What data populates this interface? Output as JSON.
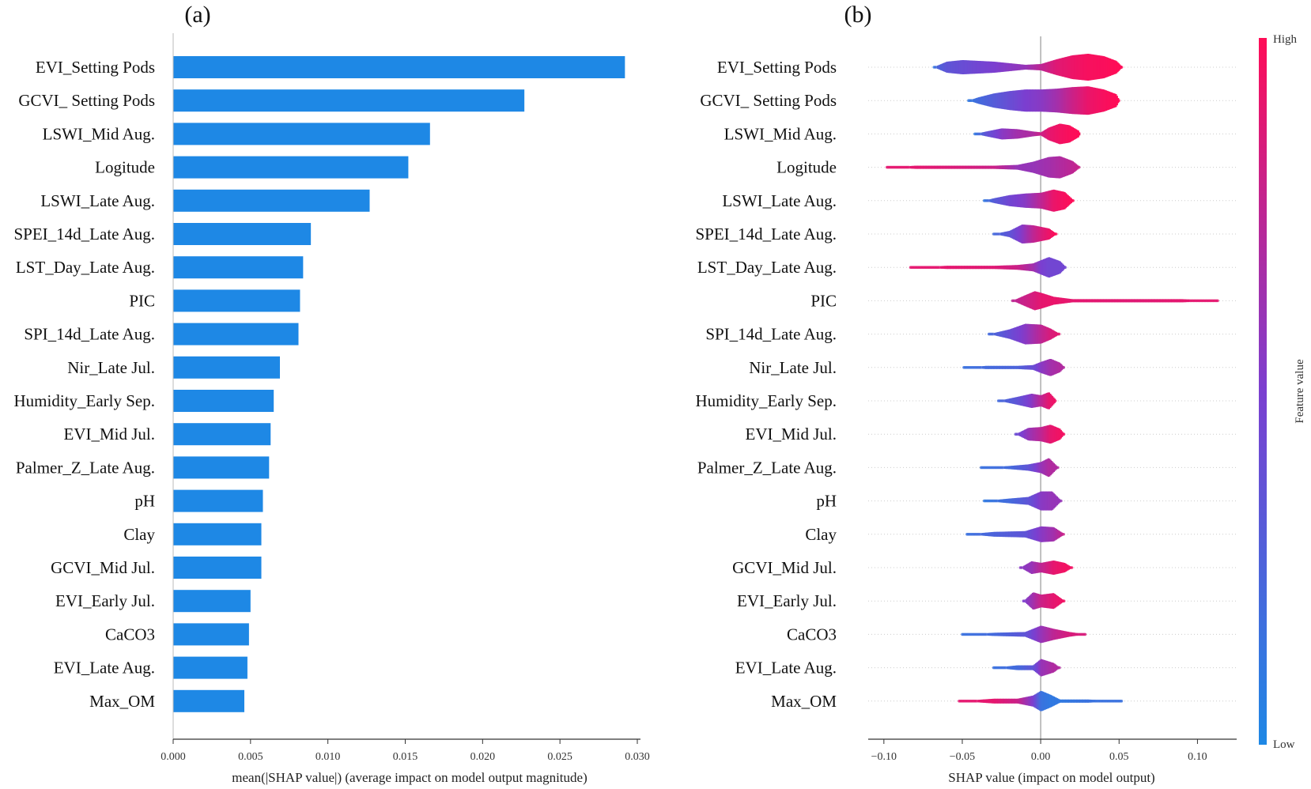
{
  "chart_data": [
    {
      "panel_label": "(a)",
      "type": "bar",
      "orientation": "horizontal",
      "categories": [
        "EVI_Setting Pods",
        "GCVI_ Setting Pods",
        "LSWI_Mid Aug.",
        "Logitude",
        "LSWI_Late Aug.",
        "SPEI_14d_Late Aug.",
        "LST_Day_Late Aug.",
        "PIC",
        "SPI_14d_Late Aug.",
        "Nir_Late Jul.",
        "Humidity_Early Sep.",
        "EVI_Mid Jul.",
        "Palmer_Z_Late Aug.",
        "pH",
        "Clay",
        "GCVI_Mid Jul.",
        "EVI_Early Jul.",
        "CaCO3",
        "EVI_Late Aug.",
        "Max_OM"
      ],
      "values": [
        0.0292,
        0.0227,
        0.0166,
        0.0152,
        0.0127,
        0.0089,
        0.0084,
        0.0082,
        0.0081,
        0.0069,
        0.0065,
        0.0063,
        0.0062,
        0.0058,
        0.0057,
        0.0057,
        0.005,
        0.0049,
        0.0048,
        0.0046
      ],
      "xlabel": "mean(|SHAP value|) (average impact on model output magnitude)",
      "ylabel": "",
      "xlim": [
        0.0,
        0.03
      ],
      "xticks": [
        "0.000",
        "0.005",
        "0.010",
        "0.015",
        "0.020",
        "0.025",
        "0.030"
      ],
      "bar_color": "#1E88E5"
    },
    {
      "panel_label": "(b)",
      "type": "scatter",
      "subtype": "shap-violin",
      "categories": [
        "EVI_Setting Pods",
        "GCVI_ Setting Pods",
        "LSWI_Mid Aug.",
        "Logitude",
        "LSWI_Late Aug.",
        "SPEI_14d_Late Aug.",
        "LST_Day_Late Aug.",
        "PIC",
        "SPI_14d_Late Aug.",
        "Nir_Late Jul.",
        "Humidity_Early Sep.",
        "EVI_Mid Jul.",
        "Palmer_Z_Late Aug.",
        "pH",
        "Clay",
        "GCVI_Mid Jul.",
        "EVI_Early Jul.",
        "CaCO3",
        "EVI_Late Aug.",
        "Max_OM"
      ],
      "xlabel": "SHAP value (impact on model output)",
      "xlim": [
        -0.11,
        0.125
      ],
      "xticks": [
        "−0.10",
        "−0.05",
        "0.00",
        "0.05",
        "0.10"
      ],
      "xtick_values": [
        -0.1,
        -0.05,
        0.0,
        0.05,
        0.1
      ],
      "colorbar": {
        "title": "Feature value",
        "high_label": "High",
        "low_label": "Low",
        "high_color": "#FF0D57",
        "low_color": "#1E88E5"
      },
      "features": [
        {
          "min": -0.068,
          "max": 0.052,
          "shape": [
            [
              -0.068,
              0,
              0.1
            ],
            [
              -0.066,
              2,
              0.25
            ],
            [
              -0.06,
              7,
              0.35
            ],
            [
              -0.05,
              9,
              0.4
            ],
            [
              -0.04,
              8,
              0.45
            ],
            [
              -0.03,
              7,
              0.5
            ],
            [
              -0.02,
              5,
              0.55
            ],
            [
              -0.01,
              3,
              0.6
            ],
            [
              0.0,
              4,
              0.75
            ],
            [
              0.01,
              10,
              0.88
            ],
            [
              0.02,
              15,
              0.93
            ],
            [
              0.03,
              17,
              0.97
            ],
            [
              0.04,
              14,
              0.98
            ],
            [
              0.048,
              8,
              1.0
            ],
            [
              0.052,
              0,
              1.0
            ]
          ]
        },
        {
          "min": -0.046,
          "max": 0.05,
          "shape": [
            [
              -0.046,
              0,
              0.1
            ],
            [
              -0.04,
              4,
              0.2
            ],
            [
              -0.03,
              9,
              0.3
            ],
            [
              -0.02,
              12,
              0.4
            ],
            [
              -0.01,
              14,
              0.5
            ],
            [
              0.0,
              14,
              0.55
            ],
            [
              0.01,
              15,
              0.65
            ],
            [
              0.02,
              17,
              0.8
            ],
            [
              0.03,
              18,
              0.92
            ],
            [
              0.04,
              14,
              0.97
            ],
            [
              0.048,
              8,
              1.0
            ],
            [
              0.05,
              0,
              1.0
            ]
          ]
        },
        {
          "min": -0.042,
          "max": 0.025,
          "shape": [
            [
              -0.042,
              0,
              0.1
            ],
            [
              -0.035,
              3,
              0.35
            ],
            [
              -0.025,
              7,
              0.55
            ],
            [
              -0.015,
              6,
              0.65
            ],
            [
              -0.005,
              3,
              0.7
            ],
            [
              0.0,
              2,
              0.8
            ],
            [
              0.005,
              8,
              0.9
            ],
            [
              0.012,
              13,
              0.95
            ],
            [
              0.018,
              11,
              0.98
            ],
            [
              0.024,
              4,
              1.0
            ],
            [
              0.025,
              0,
              1.0
            ]
          ]
        },
        {
          "min": -0.098,
          "max": 0.025,
          "shape": [
            [
              -0.098,
              0,
              0.9
            ],
            [
              -0.08,
              2,
              0.9
            ],
            [
              -0.05,
              2,
              0.85
            ],
            [
              -0.03,
              2,
              0.8
            ],
            [
              -0.015,
              3,
              0.6
            ],
            [
              -0.005,
              7,
              0.6
            ],
            [
              0.005,
              13,
              0.65
            ],
            [
              0.012,
              14,
              0.7
            ],
            [
              0.02,
              8,
              0.75
            ],
            [
              0.025,
              0,
              0.8
            ]
          ]
        },
        {
          "min": -0.036,
          "max": 0.021,
          "shape": [
            [
              -0.036,
              0,
              0.1
            ],
            [
              -0.03,
              3,
              0.3
            ],
            [
              -0.02,
              7,
              0.45
            ],
            [
              -0.01,
              9,
              0.55
            ],
            [
              0.0,
              10,
              0.75
            ],
            [
              0.008,
              14,
              0.92
            ],
            [
              0.015,
              11,
              0.97
            ],
            [
              0.021,
              0,
              1.0
            ]
          ]
        },
        {
          "min": -0.03,
          "max": 0.01,
          "shape": [
            [
              -0.03,
              0,
              0.2
            ],
            [
              -0.02,
              4,
              0.35
            ],
            [
              -0.012,
              12,
              0.55
            ],
            [
              -0.005,
              11,
              0.75
            ],
            [
              0.0,
              9,
              0.85
            ],
            [
              0.005,
              7,
              0.93
            ],
            [
              0.01,
              0,
              1.0
            ]
          ]
        },
        {
          "min": -0.083,
          "max": 0.016,
          "shape": [
            [
              -0.083,
              0,
              0.9
            ],
            [
              -0.06,
              2,
              0.9
            ],
            [
              -0.03,
              2,
              0.88
            ],
            [
              -0.015,
              3,
              0.8
            ],
            [
              -0.005,
              5,
              0.65
            ],
            [
              0.0,
              9,
              0.5
            ],
            [
              0.005,
              13,
              0.45
            ],
            [
              0.012,
              8,
              0.45
            ],
            [
              0.016,
              0,
              0.45
            ]
          ]
        },
        {
          "min": -0.018,
          "max": 0.113,
          "shape": [
            [
              -0.018,
              0,
              0.75
            ],
            [
              -0.01,
              7,
              0.8
            ],
            [
              -0.004,
              12,
              0.85
            ],
            [
              0.0,
              10,
              0.9
            ],
            [
              0.008,
              5,
              0.92
            ],
            [
              0.02,
              2,
              0.9
            ],
            [
              0.06,
              2,
              0.88
            ],
            [
              0.09,
              2,
              0.9
            ],
            [
              0.113,
              0,
              0.9
            ]
          ]
        },
        {
          "min": -0.033,
          "max": 0.012,
          "shape": [
            [
              -0.033,
              0,
              0.2
            ],
            [
              -0.02,
              6,
              0.4
            ],
            [
              -0.01,
              13,
              0.55
            ],
            [
              0.0,
              12,
              0.75
            ],
            [
              0.006,
              7,
              0.85
            ],
            [
              0.012,
              0,
              0.9
            ]
          ]
        },
        {
          "min": -0.049,
          "max": 0.015,
          "shape": [
            [
              -0.049,
              0,
              0.15
            ],
            [
              -0.035,
              2,
              0.2
            ],
            [
              -0.015,
              2,
              0.25
            ],
            [
              -0.005,
              3,
              0.4
            ],
            [
              0.0,
              7,
              0.55
            ],
            [
              0.006,
              11,
              0.65
            ],
            [
              0.012,
              6,
              0.7
            ],
            [
              0.015,
              0,
              0.7
            ]
          ]
        },
        {
          "min": -0.027,
          "max": 0.01,
          "shape": [
            [
              -0.027,
              0,
              0.2
            ],
            [
              -0.015,
              5,
              0.35
            ],
            [
              -0.006,
              9,
              0.55
            ],
            [
              0.0,
              7,
              0.75
            ],
            [
              0.005,
              11,
              0.9
            ],
            [
              0.01,
              0,
              0.95
            ]
          ]
        },
        {
          "min": -0.016,
          "max": 0.015,
          "shape": [
            [
              -0.016,
              0,
              0.4
            ],
            [
              -0.008,
              8,
              0.6
            ],
            [
              0.0,
              9,
              0.75
            ],
            [
              0.006,
              12,
              0.9
            ],
            [
              0.012,
              7,
              0.95
            ],
            [
              0.015,
              0,
              0.95
            ]
          ]
        },
        {
          "min": -0.038,
          "max": 0.011,
          "shape": [
            [
              -0.038,
              0,
              0.15
            ],
            [
              -0.02,
              2,
              0.2
            ],
            [
              -0.008,
              4,
              0.35
            ],
            [
              0.0,
              7,
              0.6
            ],
            [
              0.005,
              12,
              0.7
            ],
            [
              0.011,
              0,
              0.7
            ]
          ]
        },
        {
          "min": -0.036,
          "max": 0.013,
          "shape": [
            [
              -0.036,
              0,
              0.1
            ],
            [
              -0.02,
              3,
              0.2
            ],
            [
              -0.008,
              5,
              0.35
            ],
            [
              0.0,
              12,
              0.55
            ],
            [
              0.007,
              12,
              0.6
            ],
            [
              0.013,
              0,
              0.6
            ]
          ]
        },
        {
          "min": -0.047,
          "max": 0.015,
          "shape": [
            [
              -0.047,
              0,
              0.15
            ],
            [
              -0.03,
              3,
              0.25
            ],
            [
              -0.01,
              4,
              0.35
            ],
            [
              0.0,
              10,
              0.55
            ],
            [
              0.008,
              9,
              0.65
            ],
            [
              0.015,
              0,
              0.8
            ]
          ]
        },
        {
          "min": -0.013,
          "max": 0.02,
          "shape": [
            [
              -0.013,
              0,
              0.55
            ],
            [
              -0.006,
              8,
              0.6
            ],
            [
              0.0,
              6,
              0.75
            ],
            [
              0.008,
              9,
              0.9
            ],
            [
              0.015,
              6,
              0.95
            ],
            [
              0.02,
              0,
              0.95
            ]
          ]
        },
        {
          "min": -0.011,
          "max": 0.015,
          "shape": [
            [
              -0.011,
              0,
              0.5
            ],
            [
              -0.005,
              11,
              0.65
            ],
            [
              0.0,
              8,
              0.8
            ],
            [
              0.008,
              10,
              0.9
            ],
            [
              0.015,
              0,
              0.95
            ]
          ]
        },
        {
          "min": -0.05,
          "max": 0.029,
          "shape": [
            [
              -0.05,
              0,
              0.15
            ],
            [
              -0.03,
              2,
              0.2
            ],
            [
              -0.01,
              3,
              0.35
            ],
            [
              0.0,
              11,
              0.6
            ],
            [
              0.008,
              7,
              0.75
            ],
            [
              0.018,
              3,
              0.85
            ],
            [
              0.029,
              0,
              0.85
            ]
          ]
        },
        {
          "min": -0.03,
          "max": 0.012,
          "shape": [
            [
              -0.03,
              0,
              0.15
            ],
            [
              -0.015,
              3,
              0.2
            ],
            [
              -0.005,
              3,
              0.35
            ],
            [
              0.0,
              11,
              0.6
            ],
            [
              0.008,
              6,
              0.7
            ],
            [
              0.012,
              0,
              0.7
            ]
          ]
        },
        {
          "min": -0.052,
          "max": 0.052,
          "shape": [
            [
              -0.052,
              0,
              0.9
            ],
            [
              -0.03,
              3,
              0.9
            ],
            [
              -0.015,
              3,
              0.8
            ],
            [
              -0.005,
              7,
              0.5
            ],
            [
              0.0,
              13,
              0.15
            ],
            [
              0.006,
              8,
              0.1
            ],
            [
              0.012,
              2,
              0.1
            ],
            [
              0.03,
              2,
              0.15
            ],
            [
              0.052,
              0,
              0.15
            ]
          ]
        }
      ]
    }
  ]
}
